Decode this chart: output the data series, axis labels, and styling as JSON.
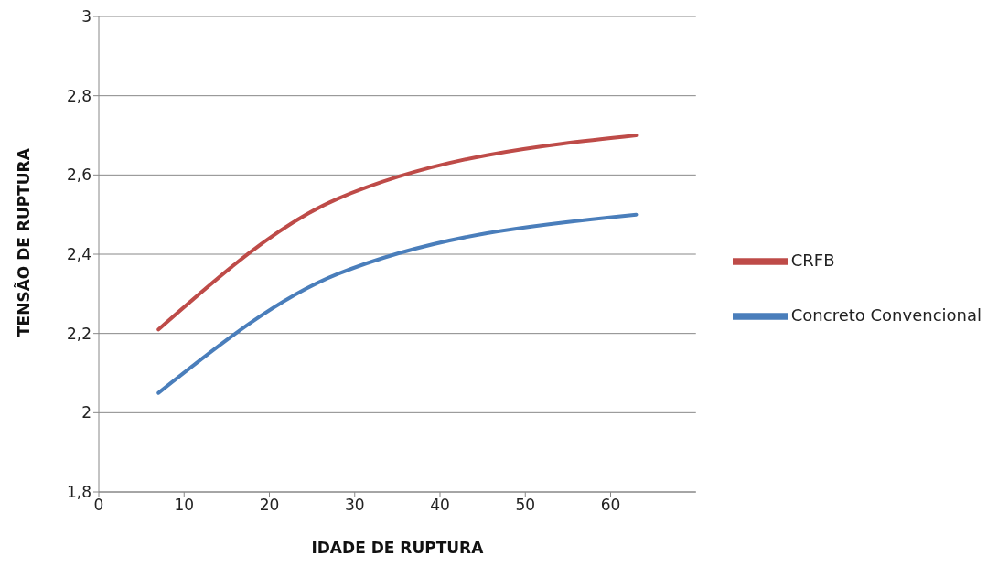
{
  "chart_data": {
    "type": "line",
    "xlabel": "IDADE DE RUPTURA",
    "ylabel": "TENSÃO DE RUPTURA",
    "x": [
      7,
      28,
      63
    ],
    "series": [
      {
        "name": "Concreto Convencional",
        "color": "#4a7ebb",
        "values": [
          2.05,
          2.35,
          2.5
        ]
      },
      {
        "name": "CRFB",
        "color": "#be4b48",
        "values": [
          2.21,
          2.54,
          2.7
        ]
      }
    ],
    "xlim": [
      0,
      70
    ],
    "xticks": [
      0,
      10,
      20,
      30,
      40,
      50,
      60
    ],
    "ylim": [
      1.8,
      3
    ],
    "yticks": [
      {
        "value": 1.8,
        "label": "1,8"
      },
      {
        "value": 2,
        "label": "2"
      },
      {
        "value": 2.2,
        "label": "2,2"
      },
      {
        "value": 2.4,
        "label": "2,4"
      },
      {
        "value": 2.6,
        "label": "2,6"
      },
      {
        "value": 2.8,
        "label": "2,8"
      },
      {
        "value": 3,
        "label": "3"
      }
    ],
    "grid": "y",
    "legend": "right",
    "marker": "none",
    "line_style": "solid"
  }
}
